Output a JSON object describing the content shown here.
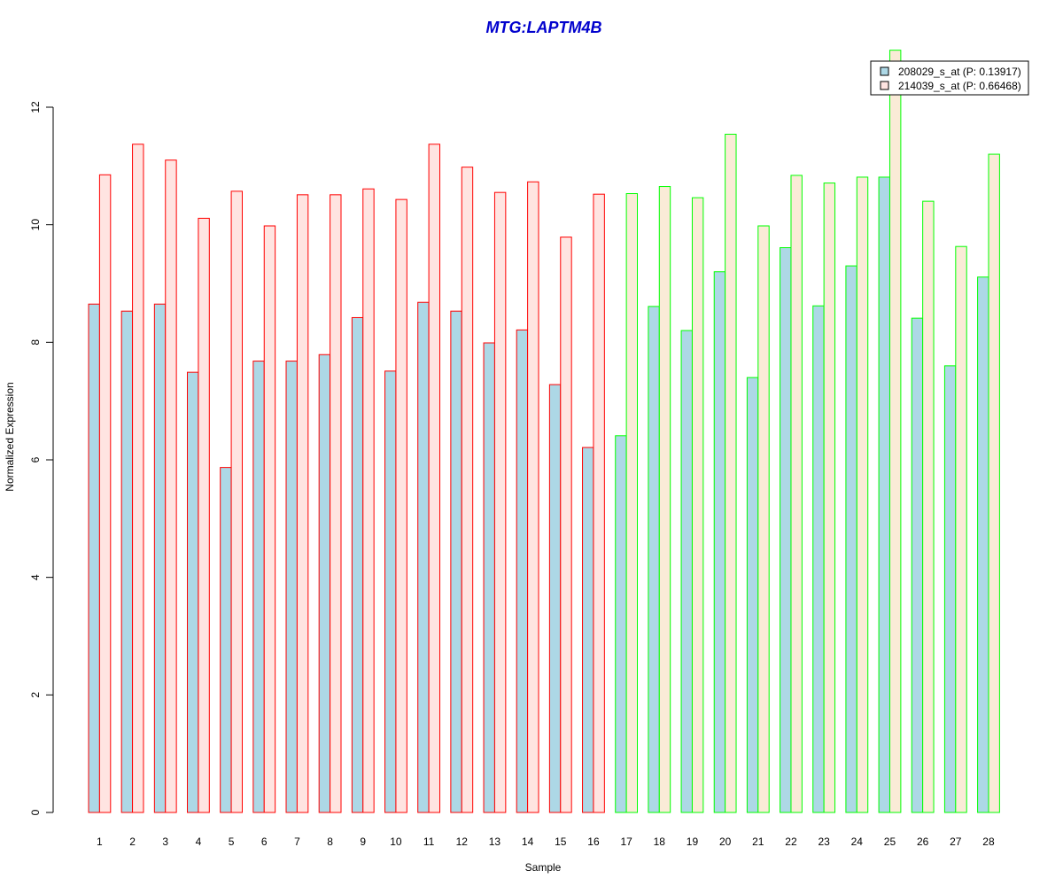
{
  "chart_data": {
    "type": "bar",
    "title": "MTG:LAPTM4B",
    "xlabel": "Sample",
    "ylabel": "Normalized Expression",
    "categories": [
      "1",
      "2",
      "3",
      "4",
      "5",
      "6",
      "7",
      "8",
      "9",
      "10",
      "11",
      "12",
      "13",
      "14",
      "15",
      "16",
      "17",
      "18",
      "19",
      "20",
      "21",
      "22",
      "23",
      "24",
      "25",
      "26",
      "27",
      "28"
    ],
    "ylim": [
      0,
      12
    ],
    "yticks": [
      "0",
      "2",
      "4",
      "6",
      "8",
      "10",
      "12"
    ],
    "grid": false,
    "legend_position": "top-right",
    "series": [
      {
        "name": "208029_s_at (P: 0.13917)",
        "values": [
          8.65,
          8.53,
          8.65,
          7.49,
          5.87,
          7.68,
          7.68,
          7.79,
          8.42,
          7.51,
          8.68,
          8.53,
          7.99,
          8.21,
          7.28,
          6.21,
          6.41,
          8.61,
          8.2,
          9.2,
          7.4,
          9.61,
          8.62,
          9.3,
          10.81,
          8.41,
          7.6,
          9.11
        ],
        "fill": "#add8e6"
      },
      {
        "name": "214039_s_at (P: 0.66468)",
        "values": [
          10.85,
          11.37,
          11.1,
          10.11,
          10.57,
          9.98,
          10.51,
          10.51,
          10.61,
          10.43,
          11.37,
          10.98,
          10.55,
          10.73,
          9.79,
          10.52,
          10.53,
          10.65,
          10.46,
          11.54,
          9.98,
          10.84,
          10.71,
          10.81,
          12.97,
          10.4,
          9.63,
          11.2
        ],
        "fill_control": "#ffe4e1",
        "fill_case": "#faebd7"
      }
    ],
    "group_colors": {
      "control": "#ff0000",
      "case": "#00ff00"
    },
    "case_start_index": 16
  }
}
